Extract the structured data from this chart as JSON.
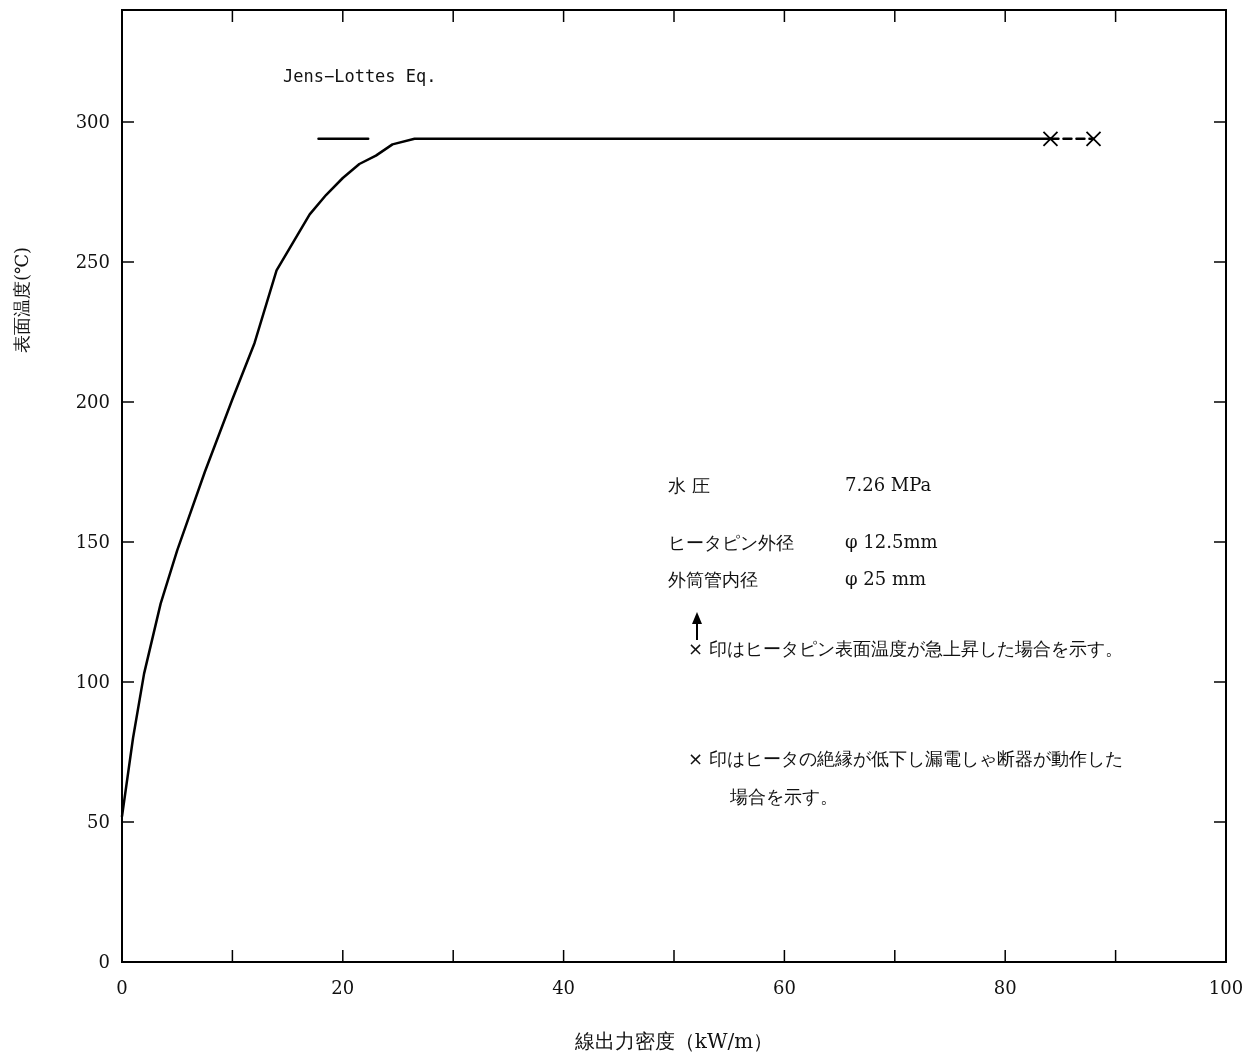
{
  "chart_data": {
    "type": "line",
    "xlabel": "線出力密度（kW/m）",
    "ylabel": "表面温度(℃)",
    "xlim": [
      0,
      100
    ],
    "ylim": [
      0,
      340
    ],
    "xticks": [
      0,
      {
        "value": 10,
        "label": null
      },
      20,
      {
        "value": 30,
        "label": null
      },
      40,
      {
        "value": 50,
        "label": null
      },
      60,
      {
        "value": 70,
        "label": null
      },
      80,
      {
        "value": 90,
        "label": null
      },
      100
    ],
    "yticks": [
      0,
      50,
      100,
      150,
      200,
      250,
      300
    ],
    "grid": false,
    "series": [
      {
        "color": "#000000",
        "line_style": "solid",
        "marker": "none",
        "x": [
          0,
          1,
          2,
          3.5,
          5,
          7.5,
          10,
          12,
          14,
          15.5,
          17,
          18.5,
          20,
          21.5,
          23,
          24.5,
          26.5,
          40,
          60,
          84.1
        ],
        "values": [
          52,
          80,
          103,
          128,
          147,
          175,
          201,
          221,
          247,
          257,
          267,
          274,
          280,
          285,
          288,
          292,
          294,
          294,
          294,
          294
        ]
      },
      {
        "color": "#000000",
        "line_style": "dashed",
        "marker": "cross",
        "x": [
          84.1,
          88.0
        ],
        "values": [
          294,
          294
        ]
      },
      {
        "color": "#000000",
        "line_style": "solid",
        "marker": "none",
        "x": [
          17.8,
          22.3
        ],
        "values": [
          294,
          294
        ]
      }
    ],
    "annotations": [
      "Jens−Lottes Eq.",
      "水 圧",
      "7.26 MPa",
      "ヒータピン外径",
      "φ 12.5mm",
      "外筒管内径",
      "φ 25 mm",
      "× 印はヒータピン表面温度が急上昇した場合を示す。",
      "× 印はヒータの絶縁が低下し漏電しゃ断器が動作した場合を示す。"
    ]
  }
}
